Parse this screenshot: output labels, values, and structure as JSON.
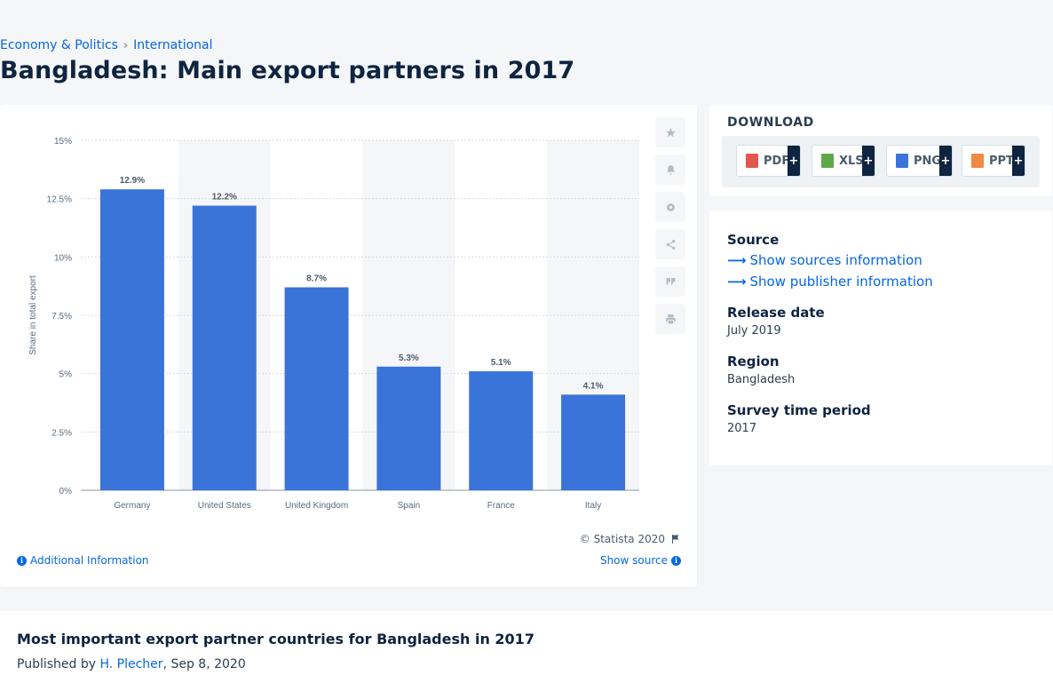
{
  "breadcrumb": {
    "items": [
      "Economy & Politics",
      "International"
    ],
    "separator": "›"
  },
  "page_title": "Bangladesh: Main export partners in 2017",
  "chart_data": {
    "type": "bar",
    "categories": [
      "Germany",
      "United States",
      "United Kingdom",
      "Spain",
      "France",
      "Italy"
    ],
    "values": [
      12.9,
      12.2,
      8.7,
      5.3,
      5.1,
      4.1
    ],
    "data_labels": [
      "12.9%",
      "12.2%",
      "8.7%",
      "5.3%",
      "5.1%",
      "4.1%"
    ],
    "ylabel": "Share in total export",
    "ylim": [
      0,
      15
    ],
    "yticks": [
      "0%",
      "2.5%",
      "5%",
      "7.5%",
      "10%",
      "12.5%",
      "15%"
    ],
    "ytick_values": [
      0,
      2.5,
      5,
      7.5,
      10,
      12.5,
      15
    ],
    "grid": true,
    "bar_color": "#3b74d8"
  },
  "chart_footer": {
    "copyright": "© Statista 2020",
    "additional_info": "Additional Information",
    "show_source": "Show source"
  },
  "tools": [
    "star-icon",
    "bell-icon",
    "gear-icon",
    "share-icon",
    "quote-icon",
    "print-icon"
  ],
  "download": {
    "title": "DOWNLOAD",
    "buttons": [
      {
        "label": "PDF",
        "color": "#e2574c"
      },
      {
        "label": "XLS",
        "color": "#5ea84a"
      },
      {
        "label": "PNG",
        "color": "#3b74d8"
      },
      {
        "label": "PPT",
        "color": "#f08a3e"
      }
    ],
    "plus": "+"
  },
  "info": {
    "source_label": "Source",
    "sources_link": "Show sources information",
    "publisher_link": "Show publisher information",
    "release_label": "Release date",
    "release_value": "July 2019",
    "region_label": "Region",
    "region_value": "Bangladesh",
    "period_label": "Survey time period",
    "period_value": "2017"
  },
  "article": {
    "title": "Most important export partner countries for Bangladesh in 2017",
    "published_prefix": "Published by",
    "author": "H. Plecher",
    "date": ", Sep 8, 2020"
  }
}
